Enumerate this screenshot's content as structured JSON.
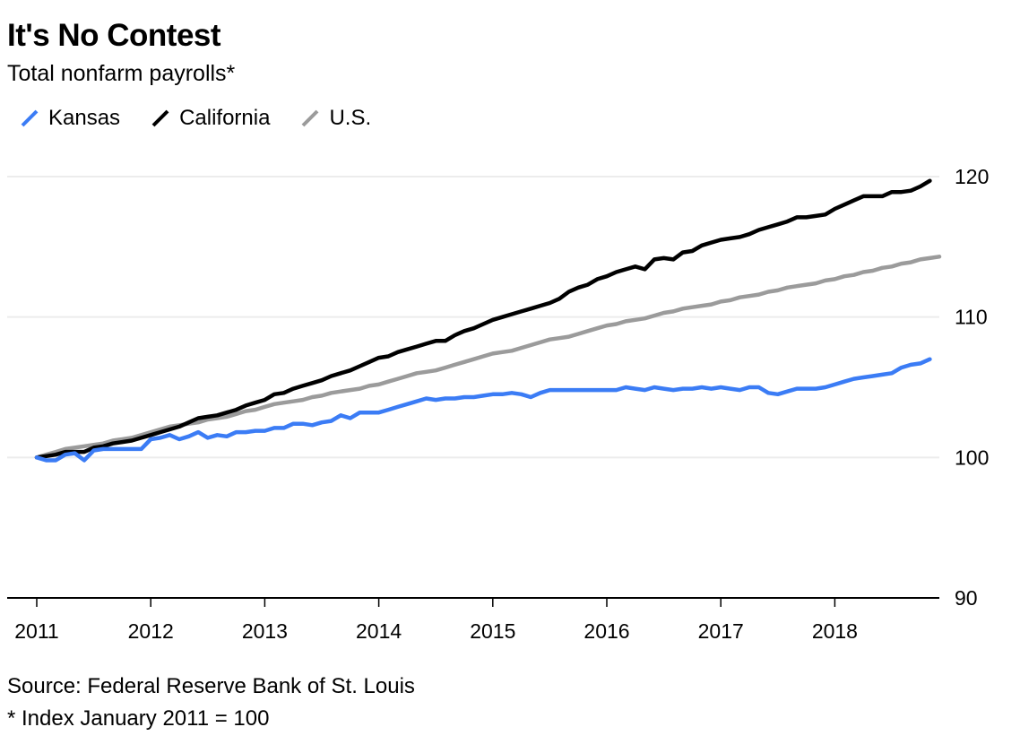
{
  "chart_data": {
    "type": "line",
    "title": "It's No Contest",
    "subtitle": "Total nonfarm payrolls*",
    "xlabel": "",
    "ylabel": "",
    "x_start": "2011-01",
    "x_frequency": "monthly",
    "xlim": [
      "2011-01",
      "2018-12"
    ],
    "ylim": [
      90,
      122
    ],
    "yticks": [
      90,
      100,
      110,
      120
    ],
    "xticks": [
      "2011",
      "2012",
      "2013",
      "2014",
      "2015",
      "2016",
      "2017",
      "2018"
    ],
    "grid": true,
    "y_axis_side": "right",
    "legend_position": "top-left",
    "series": [
      {
        "name": "Kansas",
        "color": "#3b7cf5",
        "values": [
          100.0,
          99.8,
          99.8,
          100.2,
          100.3,
          99.8,
          100.5,
          100.6,
          100.6,
          100.6,
          100.6,
          100.6,
          101.3,
          101.4,
          101.6,
          101.3,
          101.5,
          101.8,
          101.4,
          101.6,
          101.5,
          101.8,
          101.8,
          101.9,
          101.9,
          102.1,
          102.1,
          102.4,
          102.4,
          102.3,
          102.5,
          102.6,
          103.0,
          102.8,
          103.2,
          103.2,
          103.2,
          103.4,
          103.6,
          103.8,
          104.0,
          104.2,
          104.1,
          104.2,
          104.2,
          104.3,
          104.3,
          104.4,
          104.5,
          104.5,
          104.6,
          104.5,
          104.3,
          104.6,
          104.8,
          104.8,
          104.8,
          104.8,
          104.8,
          104.8,
          104.8,
          104.8,
          105.0,
          104.9,
          104.8,
          105.0,
          104.9,
          104.8,
          104.9,
          104.9,
          105.0,
          104.9,
          105.0,
          104.9,
          104.8,
          105.0,
          105.0,
          104.6,
          104.5,
          104.7,
          104.9,
          104.9,
          104.9,
          105.0,
          105.2,
          105.4,
          105.6,
          105.7,
          105.8,
          105.9,
          106.0,
          106.4,
          106.6,
          106.7,
          107.0
        ]
      },
      {
        "name": "California",
        "color": "#000000",
        "values": [
          100.0,
          100.1,
          100.2,
          100.4,
          100.4,
          100.4,
          100.7,
          100.8,
          101.0,
          101.1,
          101.2,
          101.4,
          101.6,
          101.8,
          102.0,
          102.2,
          102.5,
          102.8,
          102.9,
          103.0,
          103.2,
          103.4,
          103.7,
          103.9,
          104.1,
          104.5,
          104.6,
          104.9,
          105.1,
          105.3,
          105.5,
          105.8,
          106.0,
          106.2,
          106.5,
          106.8,
          107.1,
          107.2,
          107.5,
          107.7,
          107.9,
          108.1,
          108.3,
          108.3,
          108.7,
          109.0,
          109.2,
          109.5,
          109.8,
          110.0,
          110.2,
          110.4,
          110.6,
          110.8,
          111.0,
          111.3,
          111.8,
          112.1,
          112.3,
          112.7,
          112.9,
          113.2,
          113.4,
          113.6,
          113.4,
          114.1,
          114.2,
          114.1,
          114.6,
          114.7,
          115.1,
          115.3,
          115.5,
          115.6,
          115.7,
          115.9,
          116.2,
          116.4,
          116.6,
          116.8,
          117.1,
          117.1,
          117.2,
          117.3,
          117.7,
          118.0,
          118.3,
          118.6,
          118.6,
          118.6,
          118.9,
          118.9,
          119.0,
          119.3,
          119.7
        ]
      },
      {
        "name": "U.S.",
        "color": "#9b9b9b",
        "values": [
          100.0,
          100.2,
          100.4,
          100.6,
          100.7,
          100.8,
          100.9,
          101.0,
          101.2,
          101.3,
          101.4,
          101.6,
          101.8,
          102.0,
          102.2,
          102.3,
          102.4,
          102.5,
          102.7,
          102.8,
          102.9,
          103.1,
          103.3,
          103.4,
          103.6,
          103.8,
          103.9,
          104.0,
          104.1,
          104.3,
          104.4,
          104.6,
          104.7,
          104.8,
          104.9,
          105.1,
          105.2,
          105.4,
          105.6,
          105.8,
          106.0,
          106.1,
          106.2,
          106.4,
          106.6,
          106.8,
          107.0,
          107.2,
          107.4,
          107.5,
          107.6,
          107.8,
          108.0,
          108.2,
          108.4,
          108.5,
          108.6,
          108.8,
          109.0,
          109.2,
          109.4,
          109.5,
          109.7,
          109.8,
          109.9,
          110.1,
          110.3,
          110.4,
          110.6,
          110.7,
          110.8,
          110.9,
          111.1,
          111.2,
          111.4,
          111.5,
          111.6,
          111.8,
          111.9,
          112.1,
          112.2,
          112.3,
          112.4,
          112.6,
          112.7,
          112.9,
          113.0,
          113.2,
          113.3,
          113.5,
          113.6,
          113.8,
          113.9,
          114.1,
          114.2,
          114.3
        ]
      }
    ]
  },
  "header": {
    "title": "It's No Contest",
    "subtitle": "Total nonfarm payrolls*"
  },
  "legend": [
    {
      "label": "Kansas",
      "color": "#3b7cf5"
    },
    {
      "label": "California",
      "color": "#000000"
    },
    {
      "label": "U.S.",
      "color": "#9b9b9b"
    }
  ],
  "footer": {
    "source": "Source: Federal Reserve Bank of St. Louis",
    "note": "* Index January 2011 = 100"
  }
}
